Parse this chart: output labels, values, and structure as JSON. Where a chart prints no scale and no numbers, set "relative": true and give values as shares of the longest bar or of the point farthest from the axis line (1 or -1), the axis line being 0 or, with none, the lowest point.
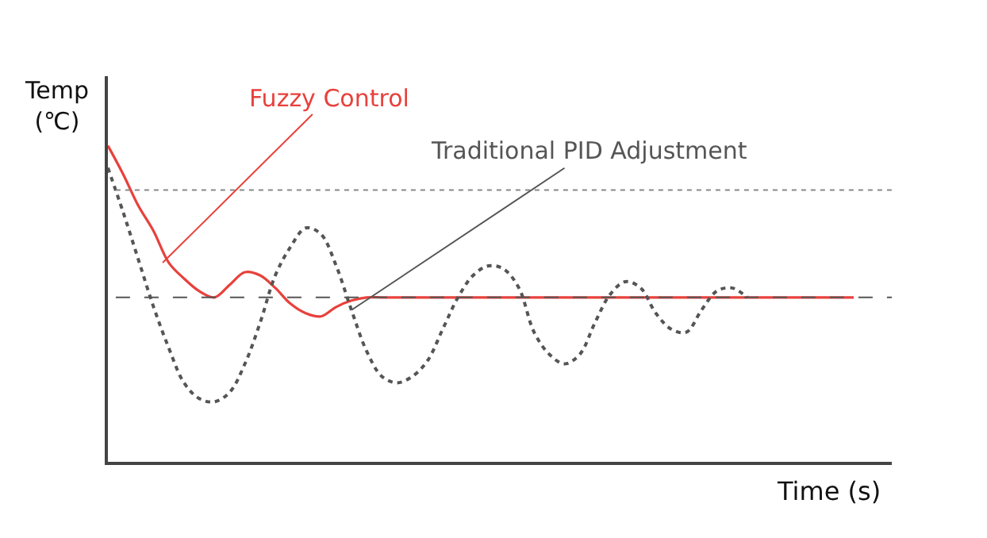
{
  "chart_data": {
    "type": "line",
    "relative": true,
    "xlabel": "Time (s)",
    "ylabel": "Temp\n(℃)",
    "tick_labels": false,
    "marker": "none",
    "categories": [
      null,
      null,
      null,
      null,
      null,
      null,
      null,
      null,
      null,
      null,
      null,
      null,
      null,
      null,
      null,
      null,
      null,
      null,
      null,
      null,
      null,
      null,
      null,
      null,
      null,
      null,
      null,
      null,
      null,
      null,
      null,
      null,
      null,
      null,
      null,
      null,
      null,
      null,
      null,
      null,
      null,
      null,
      null,
      null,
      null,
      null,
      null,
      null,
      null,
      null
    ],
    "series": [
      {
        "name": "Fuzzy Control",
        "color": "#e8413c",
        "line_style": "solid",
        "values": [
          1.0,
          0.91,
          0.81,
          0.73,
          0.63,
          0.58,
          0.54,
          0.52,
          0.56,
          0.6,
          0.59,
          0.55,
          0.5,
          0.47,
          0.46,
          0.49,
          0.51,
          0.52,
          0.52,
          0.52,
          0.52,
          0.52,
          0.52,
          0.52,
          0.52,
          0.52,
          0.52,
          0.52,
          0.52,
          0.52,
          0.52,
          0.52,
          0.52,
          0.52,
          0.52,
          0.52,
          0.52,
          0.52,
          0.52,
          0.52,
          0.52,
          0.52,
          0.52,
          0.52,
          0.52,
          0.52,
          0.52,
          0.52,
          0.52,
          0.52
        ]
      },
      {
        "name": "Traditional PID Adjustment",
        "color": "#555555",
        "line_style": "dotted",
        "values": [
          0.93,
          0.79,
          0.64,
          0.49,
          0.36,
          0.25,
          0.2,
          0.19,
          0.22,
          0.31,
          0.44,
          0.59,
          0.68,
          0.74,
          0.72,
          0.62,
          0.48,
          0.35,
          0.27,
          0.25,
          0.27,
          0.32,
          0.42,
          0.52,
          0.59,
          0.62,
          0.61,
          0.55,
          0.41,
          0.34,
          0.31,
          0.34,
          0.44,
          0.53,
          0.57,
          0.55,
          0.47,
          0.42,
          0.41,
          0.48,
          0.54,
          0.55,
          0.52,
          null,
          null,
          null,
          null,
          null,
          null,
          null
        ]
      }
    ],
    "ref_lines": [
      {
        "axis": "y",
        "value": 0.52,
        "color": "#555555",
        "line_style": "dashed"
      },
      {
        "axis": "y",
        "value": 0.86,
        "color": "#888888",
        "line_style": "dotted"
      }
    ]
  }
}
